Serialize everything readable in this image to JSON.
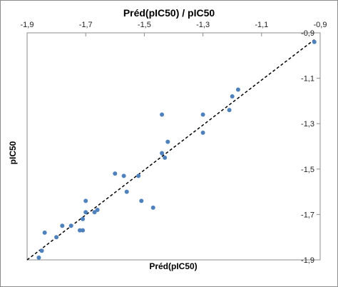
{
  "chart_data": {
    "type": "scatter",
    "title": "Préd(pIC50) / pIC50",
    "xlabel": "Préd(pIC50)",
    "ylabel": "pIC50",
    "xlim": [
      -1.9,
      -0.9
    ],
    "ylim": [
      -1.9,
      -0.9
    ],
    "x_axis_position": "top",
    "y_axis_position": "right",
    "y_axis_reversed": true,
    "grid": false,
    "legend": "none",
    "x_ticks": [
      "-1,9",
      "-1,7",
      "-1,5",
      "-1,3",
      "-1,1",
      "-0,9"
    ],
    "y_ticks": [
      "-0,9",
      "-1,1",
      "-1,3",
      "-1,5",
      "-1,7",
      "-1,9"
    ],
    "reference_line": {
      "style": "dashed",
      "from": [
        -1.9,
        -1.9
      ],
      "to": [
        -0.92,
        -0.93
      ]
    },
    "colors": {
      "marker": "#4f81bd",
      "line": "#000000"
    },
    "points": [
      {
        "x": -1.86,
        "y": -1.89
      },
      {
        "x": -1.85,
        "y": -1.86
      },
      {
        "x": -1.84,
        "y": -1.78
      },
      {
        "x": -1.8,
        "y": -1.8
      },
      {
        "x": -1.78,
        "y": -1.75
      },
      {
        "x": -1.75,
        "y": -1.75
      },
      {
        "x": -1.72,
        "y": -1.77
      },
      {
        "x": -1.71,
        "y": -1.77
      },
      {
        "x": -1.71,
        "y": -1.72
      },
      {
        "x": -1.7,
        "y": -1.64
      },
      {
        "x": -1.7,
        "y": -1.69
      },
      {
        "x": -1.67,
        "y": -1.69
      },
      {
        "x": -1.66,
        "y": -1.68
      },
      {
        "x": -1.6,
        "y": -1.52
      },
      {
        "x": -1.57,
        "y": -1.53
      },
      {
        "x": -1.56,
        "y": -1.6
      },
      {
        "x": -1.52,
        "y": -1.53
      },
      {
        "x": -1.51,
        "y": -1.64
      },
      {
        "x": -1.47,
        "y": -1.67
      },
      {
        "x": -1.44,
        "y": -1.26
      },
      {
        "x": -1.44,
        "y": -1.43
      },
      {
        "x": -1.43,
        "y": -1.45
      },
      {
        "x": -1.42,
        "y": -1.38
      },
      {
        "x": -1.3,
        "y": -1.26
      },
      {
        "x": -1.3,
        "y": -1.34
      },
      {
        "x": -1.21,
        "y": -1.24
      },
      {
        "x": -1.2,
        "y": -1.18
      },
      {
        "x": -1.18,
        "y": -1.15
      },
      {
        "x": -0.92,
        "y": -0.94
      }
    ]
  }
}
